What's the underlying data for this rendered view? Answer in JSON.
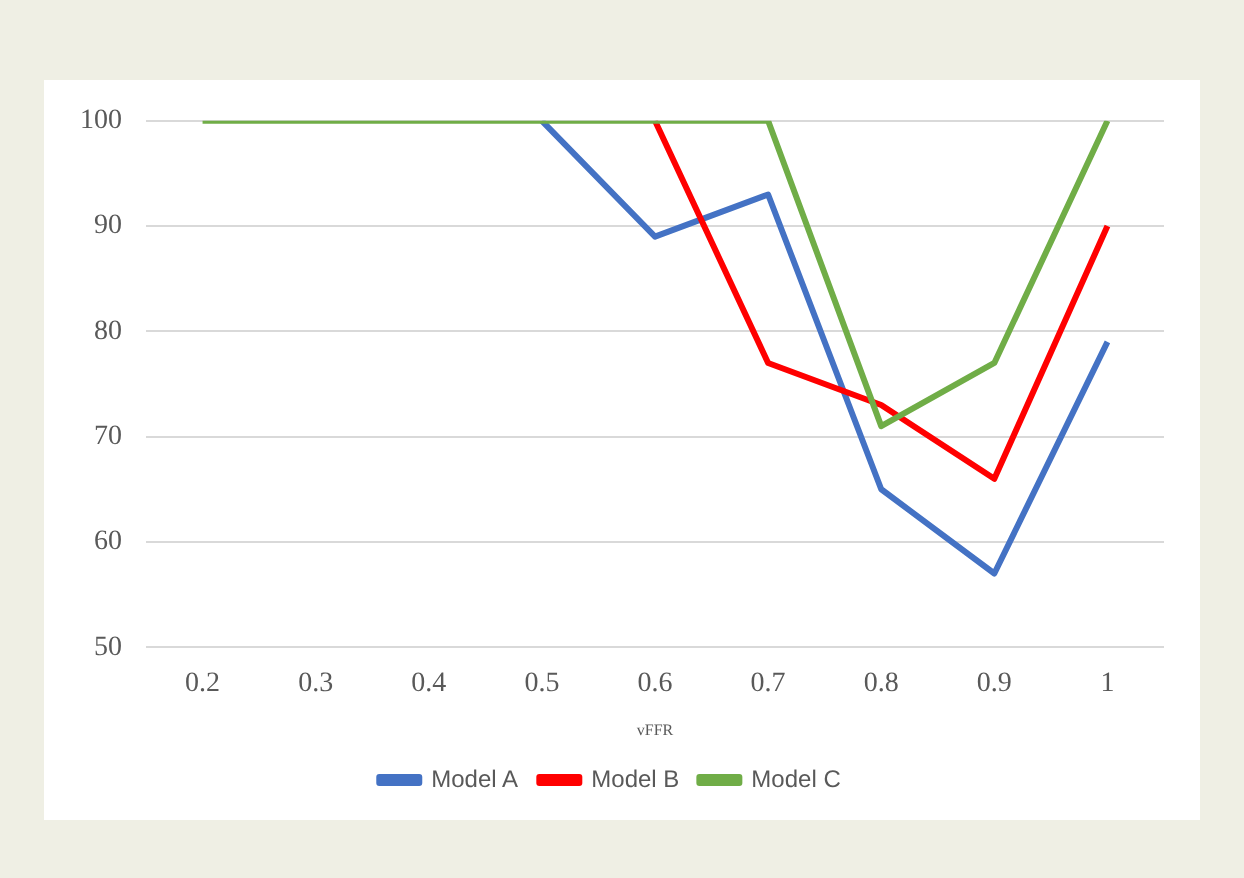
{
  "chart_data": {
    "type": "line",
    "xlabel": "vFFR",
    "categories": [
      "0.2",
      "0.3",
      "0.4",
      "0.5",
      "0.6",
      "0.7",
      "0.8",
      "0.9",
      "1"
    ],
    "series": [
      {
        "name": "Model A",
        "color": "#4472c4",
        "values": [
          null,
          null,
          null,
          100,
          89,
          93,
          65,
          57,
          79
        ]
      },
      {
        "name": "Model B",
        "color": "#ff0000",
        "values": [
          null,
          null,
          null,
          null,
          100,
          77,
          73,
          66,
          90
        ]
      },
      {
        "name": "Model C",
        "color": "#70ad47",
        "values": [
          100,
          100,
          100,
          100,
          100,
          100,
          71,
          77,
          100
        ]
      }
    ],
    "ylim": [
      50,
      100
    ],
    "yticks": [
      50,
      60,
      70,
      80,
      90,
      100
    ],
    "grid": "y",
    "legend": "bottom",
    "marker": "none",
    "line_style": "solid"
  }
}
